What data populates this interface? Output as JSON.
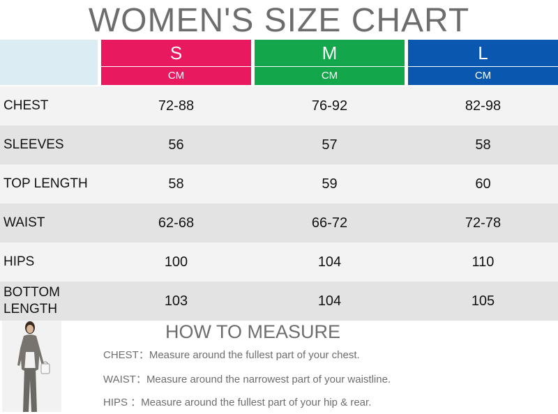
{
  "title": "WOMEN'S SIZE CHART",
  "sizes": [
    {
      "label": "S",
      "unit": "CM",
      "color": "#e8195e"
    },
    {
      "label": "M",
      "unit": "CM",
      "color": "#14a64a"
    },
    {
      "label": "L",
      "unit": "CM",
      "color": "#0a57b0"
    }
  ],
  "rows": [
    {
      "label": "CHEST",
      "s": "72-88",
      "m": "76-92",
      "l": "82-98"
    },
    {
      "label": "SLEEVES",
      "s": "56",
      "m": "57",
      "l": "58"
    },
    {
      "label": "TOP LENGTH",
      "s": "58",
      "m": "59",
      "l": "60"
    },
    {
      "label": "WAIST",
      "s": "62-68",
      "m": "66-72",
      "l": "72-78"
    },
    {
      "label": "HIPS",
      "s": "100",
      "m": "104",
      "l": "110"
    },
    {
      "label": "BOTTOM LENGTH",
      "s": "103",
      "m": "104",
      "l": "105"
    }
  ],
  "how_to": {
    "title": "HOW TO MEASURE",
    "lines": [
      "CHEST：Measure around the fullest part of your chest.",
      "WAIST：Measure around the narrowest part of your waistline.",
      "HIPS  ：Measure around the fullest part of your hip & rear."
    ]
  }
}
